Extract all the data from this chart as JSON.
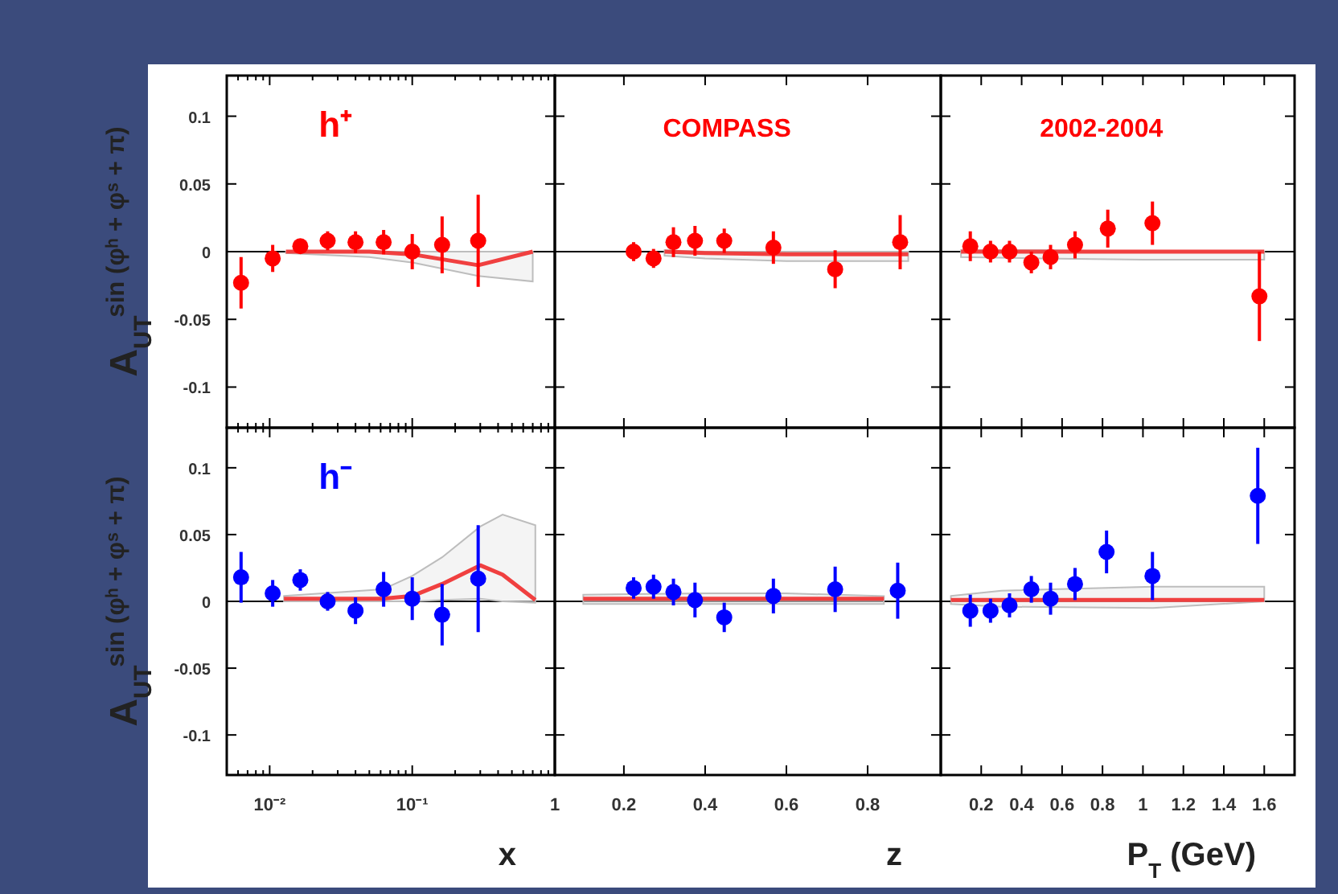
{
  "chart_data": [
    {
      "type": "scatter",
      "ylabel": "A$_{UT}$$^{sin (φʰ + φˢ + π)}$",
      "log": "x",
      "xlim": [
        0.005,
        1
      ],
      "ylim": [
        -0.13,
        0.13
      ],
      "tick_labels": "y",
      "annotations": [
        "h⁺"
      ],
      "xticks": [
        {
          "value": 0.005,
          "label": null
        },
        {
          "value": 0.006,
          "label": null
        },
        {
          "value": 0.007,
          "label": null
        },
        {
          "value": 0.008,
          "label": null
        },
        {
          "value": 0.009,
          "label": null
        },
        {
          "value": 0.01,
          "label": null
        },
        {
          "value": 0.02,
          "label": null
        },
        {
          "value": 0.03,
          "label": null
        },
        {
          "value": 0.04,
          "label": null
        },
        {
          "value": 0.05,
          "label": null
        },
        {
          "value": 0.06,
          "label": null
        },
        {
          "value": 0.07,
          "label": null
        },
        {
          "value": 0.08,
          "label": null
        },
        {
          "value": 0.09,
          "label": null
        },
        {
          "value": 0.1,
          "label": null
        },
        {
          "value": 0.2,
          "label": null
        },
        {
          "value": 0.3,
          "label": null
        },
        {
          "value": 0.4,
          "label": null
        },
        {
          "value": 0.5,
          "label": null
        },
        {
          "value": 0.6,
          "label": null
        },
        {
          "value": 0.7,
          "label": null
        },
        {
          "value": 0.8,
          "label": null
        },
        {
          "value": 0.9,
          "label": null
        },
        {
          "value": 1,
          "label": null
        }
      ],
      "yticks": [
        0.1,
        0.05,
        0,
        -0.05,
        -0.1
      ],
      "ref_lines": [
        {
          "axis": "y",
          "value": 0,
          "color": "#000000"
        }
      ],
      "series": [
        {
          "marker": "circle",
          "color": "#ff0000",
          "x": [
            0.0063,
            0.0105,
            0.0164,
            0.0255,
            0.04,
            0.063,
            0.1,
            0.162,
            0.29
          ],
          "values": [
            -0.023,
            -0.005,
            0.004,
            0.008,
            0.007,
            0.007,
            0.0,
            0.005,
            0.008
          ],
          "errors": [
            0.019,
            0.01,
            0.005,
            0.007,
            0.008,
            0.009,
            0.013,
            0.021,
            0.034
          ]
        },
        {
          "type": "line",
          "marker": "none",
          "color": "#f04040",
          "x": [
            0.013,
            0.05,
            0.1,
            0.29,
            0.7
          ],
          "values": [
            0,
            0,
            -0.002,
            -0.01,
            0
          ],
          "lower": [
            -0.001,
            -0.004,
            -0.008,
            -0.018,
            -0.022
          ],
          "upper": [
            0,
            0,
            0,
            0,
            0
          ]
        }
      ]
    },
    {
      "type": "scatter",
      "xlim": [
        0.03,
        0.98
      ],
      "ylim": [
        -0.13,
        0.13
      ],
      "tick_labels": false,
      "annotations": [
        "COMPASS"
      ],
      "xticks": [
        0.2,
        0.4,
        0.6,
        0.8
      ],
      "yticks": [
        0.1,
        0.05,
        0,
        -0.05,
        -0.1
      ],
      "ref_lines": [
        {
          "axis": "y",
          "value": 0,
          "color": "#000000"
        }
      ],
      "series": [
        {
          "marker": "circle",
          "color": "#ff0000",
          "x": [
            0.224,
            0.273,
            0.322,
            0.375,
            0.447,
            0.568,
            0.72,
            0.88
          ],
          "values": [
            0,
            -0.005,
            0.007,
            0.008,
            0.008,
            0.003,
            -0.013,
            0.007
          ],
          "errors": [
            0.007,
            0.007,
            0.011,
            0.011,
            0.009,
            0.012,
            0.014,
            0.02
          ]
        },
        {
          "type": "line",
          "marker": "none",
          "color": "#f04040",
          "x": [
            0.3,
            0.4,
            0.6,
            0.9
          ],
          "values": [
            0,
            -0.001,
            -0.002,
            -0.002
          ],
          "lower": [
            -0.003,
            -0.005,
            -0.007,
            -0.007
          ],
          "upper": [
            0.001,
            0,
            0,
            0
          ]
        }
      ]
    },
    {
      "type": "scatter",
      "xlim": [
        0,
        1.75
      ],
      "ylim": [
        -0.13,
        0.13
      ],
      "tick_labels": false,
      "annotations": [
        "2002-2004"
      ],
      "xticks": [
        0.2,
        0.4,
        0.6,
        0.8,
        1,
        1.2,
        1.4,
        1.6
      ],
      "yticks": [
        0.1,
        0.05,
        0,
        -0.05,
        -0.1
      ],
      "ref_lines": [
        {
          "axis": "y",
          "value": 0,
          "color": "#000000"
        }
      ],
      "series": [
        {
          "marker": "circle",
          "color": "#ff0000",
          "x": [
            0.146,
            0.246,
            0.34,
            0.448,
            0.543,
            0.664,
            0.826,
            1.047,
            1.576
          ],
          "values": [
            0.004,
            0,
            0,
            -0.008,
            -0.004,
            0.005,
            0.017,
            0.021,
            -0.033
          ],
          "errors": [
            0.011,
            0.008,
            0.008,
            0.008,
            0.009,
            0.01,
            0.014,
            0.016,
            0.033
          ]
        },
        {
          "type": "line",
          "marker": "none",
          "color": "#f04040",
          "x": [
            0.1,
            0.5,
            1.0,
            1.6
          ],
          "values": [
            0,
            0,
            0,
            0
          ],
          "lower": [
            -0.004,
            -0.005,
            -0.006,
            -0.006
          ],
          "upper": [
            0.001,
            0.001,
            0,
            0
          ]
        }
      ]
    },
    {
      "type": "scatter",
      "ylabel": "A$_{UT}$$^{sin (φʰ + φˢ + π)}$",
      "xlabel": "x",
      "log": "x",
      "xlim": [
        0.005,
        1
      ],
      "ylim": [
        -0.13,
        0.13
      ],
      "annotations": [
        "h⁻"
      ],
      "xticks": [
        {
          "value": 0.005,
          "label": null
        },
        {
          "value": 0.006,
          "label": null
        },
        {
          "value": 0.007,
          "label": null
        },
        {
          "value": 0.008,
          "label": null
        },
        {
          "value": 0.009,
          "label": null
        },
        {
          "value": 0.01,
          "label": "10⁻²"
        },
        {
          "value": 0.02,
          "label": null
        },
        {
          "value": 0.03,
          "label": null
        },
        {
          "value": 0.04,
          "label": null
        },
        {
          "value": 0.05,
          "label": null
        },
        {
          "value": 0.06,
          "label": null
        },
        {
          "value": 0.07,
          "label": null
        },
        {
          "value": 0.08,
          "label": null
        },
        {
          "value": 0.09,
          "label": null
        },
        {
          "value": 0.1,
          "label": "10⁻¹"
        },
        {
          "value": 0.2,
          "label": null
        },
        {
          "value": 0.3,
          "label": null
        },
        {
          "value": 0.4,
          "label": null
        },
        {
          "value": 0.5,
          "label": null
        },
        {
          "value": 0.6,
          "label": null
        },
        {
          "value": 0.7,
          "label": null
        },
        {
          "value": 0.8,
          "label": null
        },
        {
          "value": 0.9,
          "label": null
        },
        1
      ],
      "yticks": [
        0.1,
        0.05,
        0,
        -0.05,
        -0.1
      ],
      "ref_lines": [
        {
          "axis": "y",
          "value": 0,
          "color": "#000000"
        }
      ],
      "series": [
        {
          "marker": "circle",
          "color": "#0000ff",
          "x": [
            0.0063,
            0.0105,
            0.0164,
            0.0255,
            0.04,
            0.063,
            0.1,
            0.162,
            0.29
          ],
          "values": [
            0.018,
            0.006,
            0.016,
            0,
            -0.007,
            0.009,
            0.002,
            -0.01,
            0.017
          ],
          "errors": [
            0.019,
            0.01,
            0.008,
            0.007,
            0.01,
            0.013,
            0.016,
            0.023,
            0.04
          ]
        },
        {
          "type": "line",
          "marker": "none",
          "color": "#f04040",
          "x": [
            0.0126,
            0.062,
            0.1,
            0.162,
            0.3,
            0.43,
            0.73
          ],
          "values": [
            0.002,
            0.002,
            0.004,
            0.013,
            0.027,
            0.02,
            0.001
          ],
          "lower": [
            0,
            0,
            0,
            0.001,
            0.002,
            0,
            -0.001
          ],
          "upper": [
            0.004,
            0.009,
            0.019,
            0.033,
            0.056,
            0.065,
            0.057
          ]
        }
      ]
    },
    {
      "type": "scatter",
      "xlabel": "z",
      "xlim": [
        0.03,
        0.98
      ],
      "ylim": [
        -0.13,
        0.13
      ],
      "tick_labels": "x",
      "xticks": [
        0.2,
        0.4,
        0.6,
        0.8
      ],
      "yticks": [
        0.1,
        0.05,
        0,
        -0.05,
        -0.1
      ],
      "ref_lines": [
        {
          "axis": "y",
          "value": 0,
          "color": "#000000"
        }
      ],
      "series": [
        {
          "marker": "circle",
          "color": "#0000ff",
          "x": [
            0.224,
            0.273,
            0.322,
            0.375,
            0.447,
            0.568,
            0.72,
            0.874
          ],
          "values": [
            0.01,
            0.011,
            0.007,
            0.001,
            -0.012,
            0.004,
            0.009,
            0.008
          ],
          "errors": [
            0.008,
            0.009,
            0.01,
            0.013,
            0.011,
            0.013,
            0.017,
            0.021
          ]
        },
        {
          "type": "line",
          "marker": "none",
          "color": "#f04040",
          "x": [
            0.1,
            0.4,
            0.6,
            0.84
          ],
          "values": [
            0.002,
            0.002,
            0.002,
            0.002
          ],
          "lower": [
            -0.002,
            -0.002,
            -0.002,
            -0.002
          ],
          "upper": [
            0.005,
            0.006,
            0.006,
            0.004
          ]
        }
      ]
    },
    {
      "type": "scatter",
      "xlabel": "P$_{T}$ (GeV)",
      "xlim": [
        0,
        1.75
      ],
      "ylim": [
        -0.13,
        0.13
      ],
      "tick_labels": "x",
      "xticks": [
        0.2,
        0.4,
        0.6,
        0.8,
        1,
        1.2,
        1.4,
        1.6
      ],
      "yticks": [
        0.1,
        0.05,
        0,
        -0.05,
        -0.1
      ],
      "ref_lines": [
        {
          "axis": "y",
          "value": 0,
          "color": "#000000"
        }
      ],
      "series": [
        {
          "marker": "circle",
          "color": "#0000ff",
          "x": [
            0.146,
            0.246,
            0.34,
            0.448,
            0.543,
            0.664,
            0.82,
            1.047,
            1.568
          ],
          "values": [
            -0.007,
            -0.007,
            -0.003,
            0.009,
            0.002,
            0.013,
            0.037,
            0.019,
            0.079
          ],
          "errors": [
            0.012,
            0.009,
            0.009,
            0.01,
            0.012,
            0.012,
            0.016,
            0.018,
            0.036
          ]
        },
        {
          "type": "line",
          "marker": "none",
          "color": "#f04040",
          "x": [
            0.05,
            0.3,
            1.05,
            1.6
          ],
          "values": [
            0.001,
            0.001,
            0.001,
            0.001
          ],
          "lower": [
            -0.002,
            -0.004,
            -0.005,
            0
          ],
          "upper": [
            0.004,
            0.008,
            0.011,
            0.011
          ]
        }
      ]
    }
  ]
}
